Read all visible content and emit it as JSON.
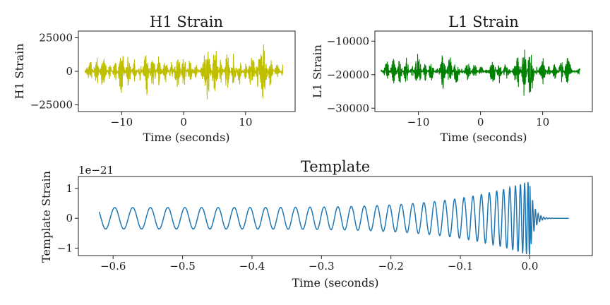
{
  "chart_data": [
    {
      "id": "h1",
      "type": "line",
      "title": "H1 Strain",
      "xlabel": "Time (seconds)",
      "ylabel": "H1 Strain",
      "xlim": [
        -17,
        18
      ],
      "ylim": [
        -30000,
        30000
      ],
      "xticks": [
        -10,
        0,
        10
      ],
      "xtick_labels": [
        "−10",
        "0",
        "10"
      ],
      "yticks": [
        -25000,
        0,
        25000
      ],
      "ytick_labels": [
        "−25000",
        "0",
        "25000"
      ],
      "grid": false,
      "color": "#bfbf00",
      "series": [
        {
          "x": [
            -16,
            -15,
            -14,
            -13,
            -12,
            -11,
            -10,
            -9,
            -8,
            -7,
            -6,
            -5,
            -4,
            -3,
            -2,
            -1,
            0,
            1,
            2,
            3,
            4,
            5,
            6,
            7,
            8,
            9,
            10,
            11,
            12,
            13,
            14,
            15,
            16
          ],
          "y": [
            0,
            9000,
            -14000,
            20000,
            -9000,
            11000,
            -24000,
            18000,
            -11000,
            9000,
            -23000,
            22000,
            -16000,
            13000,
            -10000,
            20000,
            -16000,
            12000,
            -9000,
            8000,
            25000,
            -27000,
            14000,
            -20000,
            17000,
            -12000,
            11000,
            -21000,
            16000,
            24000,
            -14000,
            9000,
            -6000
          ]
        }
      ]
    },
    {
      "id": "l1",
      "type": "line",
      "title": "L1 Strain",
      "xlabel": "Time (seconds)",
      "ylabel": "L1 Strain",
      "xlim": [
        -17,
        18
      ],
      "ylim": [
        -31000,
        -7000
      ],
      "xticks": [
        -10,
        0,
        10
      ],
      "xtick_labels": [
        "−10",
        "0",
        "10"
      ],
      "yticks": [
        -30000,
        -20000,
        -10000
      ],
      "ytick_labels": [
        "−30000",
        "−20000",
        "−10000"
      ],
      "grid": false,
      "color": "#008000",
      "series": [
        {
          "x": [
            -16,
            -15,
            -14,
            -13,
            -12,
            -11,
            -10,
            -9,
            -8,
            -7,
            -6,
            -5,
            -4,
            -3,
            -2,
            -1,
            0,
            1,
            2,
            3,
            4,
            5,
            6,
            7,
            8,
            9,
            10,
            11,
            12,
            13,
            14,
            15,
            16
          ],
          "y": [
            -20000,
            -15000,
            -25000,
            -14000,
            -24000,
            -16000,
            -27000,
            -15000,
            -23000,
            -17000,
            -26000,
            -12000,
            -24000,
            -18000,
            -23000,
            -16000,
            -21000,
            -18000,
            -24000,
            -15000,
            -22000,
            -19000,
            -26000,
            -9000,
            -30000,
            -17000,
            -24000,
            -16000,
            -23000,
            -14000,
            -25000,
            -18000,
            -21000
          ]
        }
      ]
    },
    {
      "id": "template",
      "type": "line",
      "title": "Template",
      "xlabel": "Time (seconds)",
      "ylabel": "Template Strain",
      "offset_text": "1e−21",
      "xlim": [
        -0.65,
        0.09
      ],
      "ylim": [
        -1.25,
        1.4
      ],
      "xticks": [
        -0.6,
        -0.5,
        -0.4,
        -0.3,
        -0.2,
        -0.1,
        0.0
      ],
      "xtick_labels": [
        "−0.6",
        "−0.5",
        "−0.4",
        "−0.3",
        "−0.2",
        "−0.1",
        "0.0"
      ],
      "yticks": [
        -1,
        0,
        1
      ],
      "ytick_labels": [
        "−1",
        "0",
        "1"
      ],
      "grid": false,
      "color": "#1f77b4",
      "series": [
        {
          "x": [
            -0.62,
            -0.6,
            -0.58,
            -0.55,
            -0.52,
            -0.5,
            -0.47,
            -0.44,
            -0.4,
            -0.36,
            -0.3,
            -0.25,
            -0.2,
            -0.15,
            -0.1,
            -0.07,
            -0.05,
            -0.03,
            -0.02,
            -0.01,
            -0.005,
            0.0,
            0.005,
            0.01,
            0.02,
            0.03,
            0.056
          ],
          "y": [
            -0.2,
            0.36,
            -0.36,
            0.38,
            -0.38,
            0.38,
            -0.38,
            0.38,
            0.38,
            -0.38,
            0.4,
            0.45,
            0.5,
            0.55,
            0.6,
            -0.7,
            0.8,
            -0.9,
            1.0,
            -1.15,
            1.1,
            1.25,
            -1.15,
            0.35,
            -0.1,
            0.02,
            0.0
          ]
        }
      ]
    }
  ]
}
